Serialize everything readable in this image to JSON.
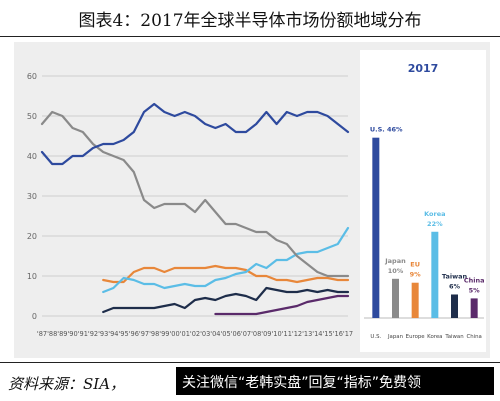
{
  "header": {
    "title": "图表4：2017年全球半导体市场份额地域分布"
  },
  "footer": {
    "source": "资料来源：SIA，",
    "wechat": "关注微信“老韩实盘”回复“指标”免费领"
  },
  "colors": {
    "us": "#2e4a9e",
    "japan": "#8a8a8a",
    "europe": "#e8873a",
    "korea": "#5bbde6",
    "taiwan": "#1e2d4a",
    "china": "#5a2a6a"
  },
  "chart_data": [
    {
      "type": "line",
      "ylim": [
        0,
        60
      ],
      "yticks": [
        0,
        10,
        20,
        30,
        40,
        50,
        60
      ],
      "x": [
        "'87",
        "'88",
        "'89",
        "'90",
        "'91",
        "'92",
        "'93",
        "'94",
        "'95",
        "'96",
        "'97",
        "'98",
        "'99",
        "'00",
        "'01",
        "'02",
        "'03",
        "'04",
        "'05",
        "'06",
        "'07",
        "'08",
        "'09",
        "'10",
        "'11",
        "'12",
        "'13",
        "'14",
        "'15",
        "'16",
        "'17"
      ],
      "series": [
        {
          "key": "us",
          "color": "#2e4a9e",
          "values": [
            41,
            38,
            38,
            40,
            40,
            42,
            43,
            43,
            44,
            46,
            51,
            53,
            51,
            50,
            51,
            50,
            48,
            47,
            48,
            46,
            46,
            48,
            51,
            48,
            51,
            50,
            51,
            51,
            50,
            48,
            46
          ]
        },
        {
          "key": "japan",
          "color": "#8a8a8a",
          "values": [
            48,
            51,
            50,
            47,
            46,
            43,
            41,
            40,
            39,
            36,
            29,
            27,
            28,
            28,
            28,
            26,
            29,
            26,
            23,
            23,
            22,
            21,
            21,
            19,
            18,
            15,
            13,
            11,
            10,
            10,
            10
          ]
        },
        {
          "key": "europe",
          "color": "#e8873a",
          "start": 6,
          "values": [
            null,
            null,
            null,
            null,
            null,
            null,
            9,
            8.5,
            8.5,
            11,
            12,
            12,
            11,
            12,
            12,
            12,
            12,
            12.5,
            12,
            12,
            11.5,
            10,
            10,
            9,
            9,
            8.5,
            9,
            9.5,
            9.5,
            9,
            9
          ]
        },
        {
          "key": "korea",
          "color": "#5bbde6",
          "values": [
            null,
            null,
            null,
            null,
            null,
            null,
            6,
            7,
            9.5,
            9,
            8,
            8,
            7,
            7.5,
            8,
            7.5,
            7.5,
            9,
            9.5,
            10.5,
            11,
            13,
            12,
            14,
            14,
            15.5,
            16,
            16,
            17,
            18,
            22
          ]
        },
        {
          "key": "taiwan",
          "color": "#1e2d4a",
          "values": [
            null,
            null,
            null,
            null,
            null,
            null,
            1,
            2,
            2,
            2,
            2,
            2,
            2.5,
            3,
            2,
            4,
            4.5,
            4,
            5,
            5.5,
            5,
            4,
            7,
            6.5,
            6,
            6,
            6.5,
            6,
            6.5,
            6,
            6
          ]
        },
        {
          "key": "china",
          "color": "#5a2a6a",
          "values": [
            null,
            null,
            null,
            null,
            null,
            null,
            null,
            null,
            null,
            null,
            null,
            null,
            null,
            null,
            null,
            null,
            null,
            0.5,
            0.5,
            0.5,
            0.5,
            0.5,
            1,
            1.5,
            2,
            2.5,
            3.5,
            4,
            4.5,
            5,
            5
          ]
        }
      ]
    },
    {
      "type": "bar",
      "title": "2017",
      "categories": [
        "U.S.",
        "Japan",
        "Europe",
        "Korea",
        "Taiwan",
        "China"
      ],
      "values": [
        46,
        10,
        9,
        22,
        6,
        5
      ],
      "labels": [
        [
          "U.S. 46%"
        ],
        [
          "Japan",
          "10%"
        ],
        [
          "EU",
          "9%"
        ],
        [
          "Korea",
          "22%"
        ],
        [
          "Taiwan",
          "6%"
        ],
        [
          "China",
          "5%"
        ]
      ],
      "colors": [
        "#2e4a9e",
        "#8a8a8a",
        "#e8873a",
        "#5bbde6",
        "#1e2d4a",
        "#5a2a6a"
      ],
      "ylim": [
        0,
        50
      ]
    }
  ]
}
